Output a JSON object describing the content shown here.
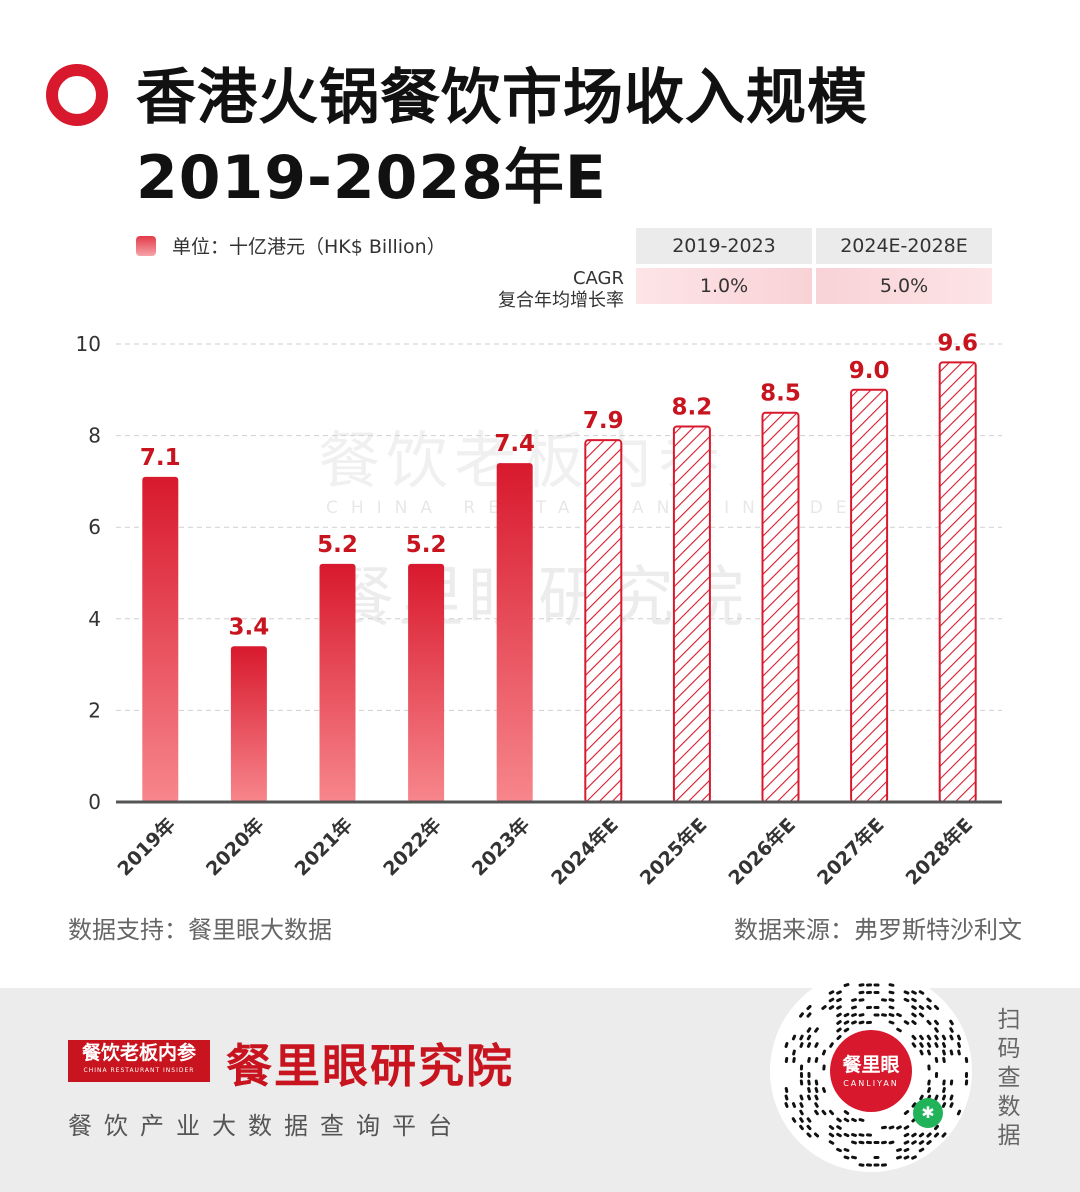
{
  "title": {
    "line1": "香港火锅餐饮市场收入规模",
    "line2": "2019-2028年E"
  },
  "legend": {
    "label": "单位：十亿港元（HK$ Billion）",
    "swatch_color": "#e23a48"
  },
  "cagr": {
    "label_line1": "CAGR",
    "label_line2": "复合年均增长率",
    "periods": [
      "2019-2023",
      "2024E-2028E"
    ],
    "values": [
      "1.0%",
      "5.0%"
    ]
  },
  "watermark": {
    "line1": "餐饮老板内参",
    "line2": "CHINA RESTAURANT INSIDER",
    "line3": "餐里眼研究院"
  },
  "chart_data": {
    "type": "bar",
    "categories": [
      "2019年",
      "2020年",
      "2021年",
      "2022年",
      "2023年",
      "2024年E",
      "2025年E",
      "2026年E",
      "2027年E",
      "2028年E"
    ],
    "values": [
      7.1,
      3.4,
      5.2,
      5.2,
      7.4,
      7.9,
      8.2,
      8.5,
      9.0,
      9.6
    ],
    "value_labels": [
      "7.1",
      "3.4",
      "5.2",
      "5.2",
      "7.4",
      "7.9",
      "8.2",
      "8.5",
      "9.0",
      "9.6"
    ],
    "estimated": [
      false,
      false,
      false,
      false,
      false,
      true,
      true,
      true,
      true,
      true
    ],
    "yticks": [
      "0",
      "2",
      "4",
      "6",
      "8",
      "10"
    ],
    "ylim": [
      0,
      10
    ],
    "grid": true,
    "legend_placement": "top-left",
    "colors": {
      "actual": "#d8192d",
      "actual_light": "#f7868c",
      "estimate": "#d8192d",
      "label": "#c8141f"
    }
  },
  "footer": {
    "support": "数据支持：餐里眼大数据",
    "source": "数据来源：弗罗斯特沙利文",
    "brand_small": "餐饮老板内参",
    "brand_small_sub": "CHINA RESTAURANT INSIDER",
    "brand_big": "餐里眼研究院",
    "tagline": "餐饮产业大数据查询平台",
    "qr_brand": "餐里眼",
    "qr_brand_sub": "CANLIYAN",
    "scan_text": "扫码查数据"
  }
}
